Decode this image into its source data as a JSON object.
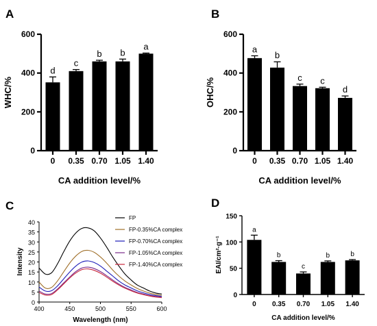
{
  "panels": [
    {
      "letter": "A",
      "type": "bar",
      "xlabel": "CA  addition level/%",
      "ylabel": "WHC/%",
      "ylim": [
        0,
        600
      ],
      "yticks": [
        0,
        200,
        400,
        600
      ],
      "categories": [
        "0",
        "0.35",
        "0.70",
        "1.05",
        "1.40"
      ],
      "values": [
        352,
        410,
        460,
        460,
        500
      ],
      "errors": [
        28,
        8,
        6,
        12,
        3
      ],
      "significance": [
        "d",
        "c",
        "b",
        "b",
        "a"
      ]
    },
    {
      "letter": "B",
      "type": "bar",
      "xlabel": "CA  addition level/%",
      "ylabel": "OHC/%",
      "ylim": [
        0,
        600
      ],
      "yticks": [
        0,
        200,
        400,
        600
      ],
      "categories": [
        "0",
        "0.35",
        "0.70",
        "1.05",
        "1.40"
      ],
      "values": [
        477,
        428,
        333,
        322,
        272
      ],
      "errors": [
        12,
        30,
        10,
        5,
        10
      ],
      "significance": [
        "a",
        "b",
        "c",
        "c",
        "d"
      ]
    },
    {
      "letter": "C",
      "type": "line",
      "xlabel": "Wavelength (nm)",
      "ylabel": "Intensity",
      "xlim": [
        400,
        600
      ],
      "ylim": [
        0,
        40
      ],
      "xticks": [
        400,
        450,
        500,
        550,
        600
      ],
      "yticks": [
        0,
        5,
        10,
        15,
        20,
        25,
        30,
        35,
        40
      ],
      "x": [
        400,
        410,
        420,
        430,
        440,
        450,
        460,
        470,
        480,
        490,
        500,
        510,
        520,
        530,
        540,
        550,
        560,
        570,
        580,
        590,
        600
      ],
      "series": [
        {
          "name": "FP",
          "color": "#000000",
          "values": [
            17,
            14,
            14.5,
            19,
            25,
            30.5,
            34.5,
            36.8,
            37,
            35.5,
            32,
            27.5,
            22.5,
            18,
            14,
            11,
            8.5,
            7,
            5.5,
            4.5,
            4
          ]
        },
        {
          "name": "FP-0.35%CA complex",
          "color": "#a0702a",
          "values": [
            10,
            7,
            7.2,
            10.5,
            15,
            19.5,
            23,
            25.3,
            25.8,
            24.8,
            22.5,
            19.5,
            16,
            13,
            10.5,
            8.5,
            6.8,
            5.5,
            4.5,
            3.8,
            3.3
          ]
        },
        {
          "name": "FP-0.70%CA complex",
          "color": "#1c1cb8",
          "values": [
            7.5,
            5.5,
            5.6,
            8,
            11.5,
            15,
            18,
            20,
            20.5,
            19.7,
            18,
            15.5,
            13,
            10.5,
            8.5,
            7,
            5.6,
            4.6,
            3.8,
            3.2,
            2.8
          ]
        },
        {
          "name": "FP-1.05%CA complex",
          "color": "#7a2a8a",
          "values": [
            5.5,
            4,
            4.2,
            6.5,
            9.5,
            12.5,
            15.2,
            17,
            17.4,
            16.7,
            15.2,
            13.2,
            11,
            9,
            7.3,
            6,
            4.8,
            4,
            3.3,
            2.8,
            2.4
          ]
        },
        {
          "name": "FP-1.40%CA complex",
          "color": "#c8283c",
          "values": [
            4.8,
            3.5,
            3.7,
            6,
            9,
            12,
            14.5,
            16.2,
            16.5,
            15.8,
            14.4,
            12.5,
            10.4,
            8.5,
            6.9,
            5.6,
            4.5,
            3.7,
            3,
            2.5,
            2.2
          ]
        }
      ]
    },
    {
      "letter": "D",
      "type": "bar",
      "xlabel": "CA  addition level/%",
      "ylabel": "EAI/cm²·g⁻¹",
      "ylim": [
        0,
        150
      ],
      "yticks": [
        0,
        50,
        100,
        150
      ],
      "categories": [
        "0",
        "0.35",
        "0.70",
        "1.05",
        "1.40"
      ],
      "values": [
        104,
        62,
        40,
        62,
        65
      ],
      "errors": [
        9,
        2.5,
        3,
        2,
        1.5
      ],
      "significance": [
        "a",
        "b",
        "c",
        "b",
        "b"
      ]
    }
  ]
}
